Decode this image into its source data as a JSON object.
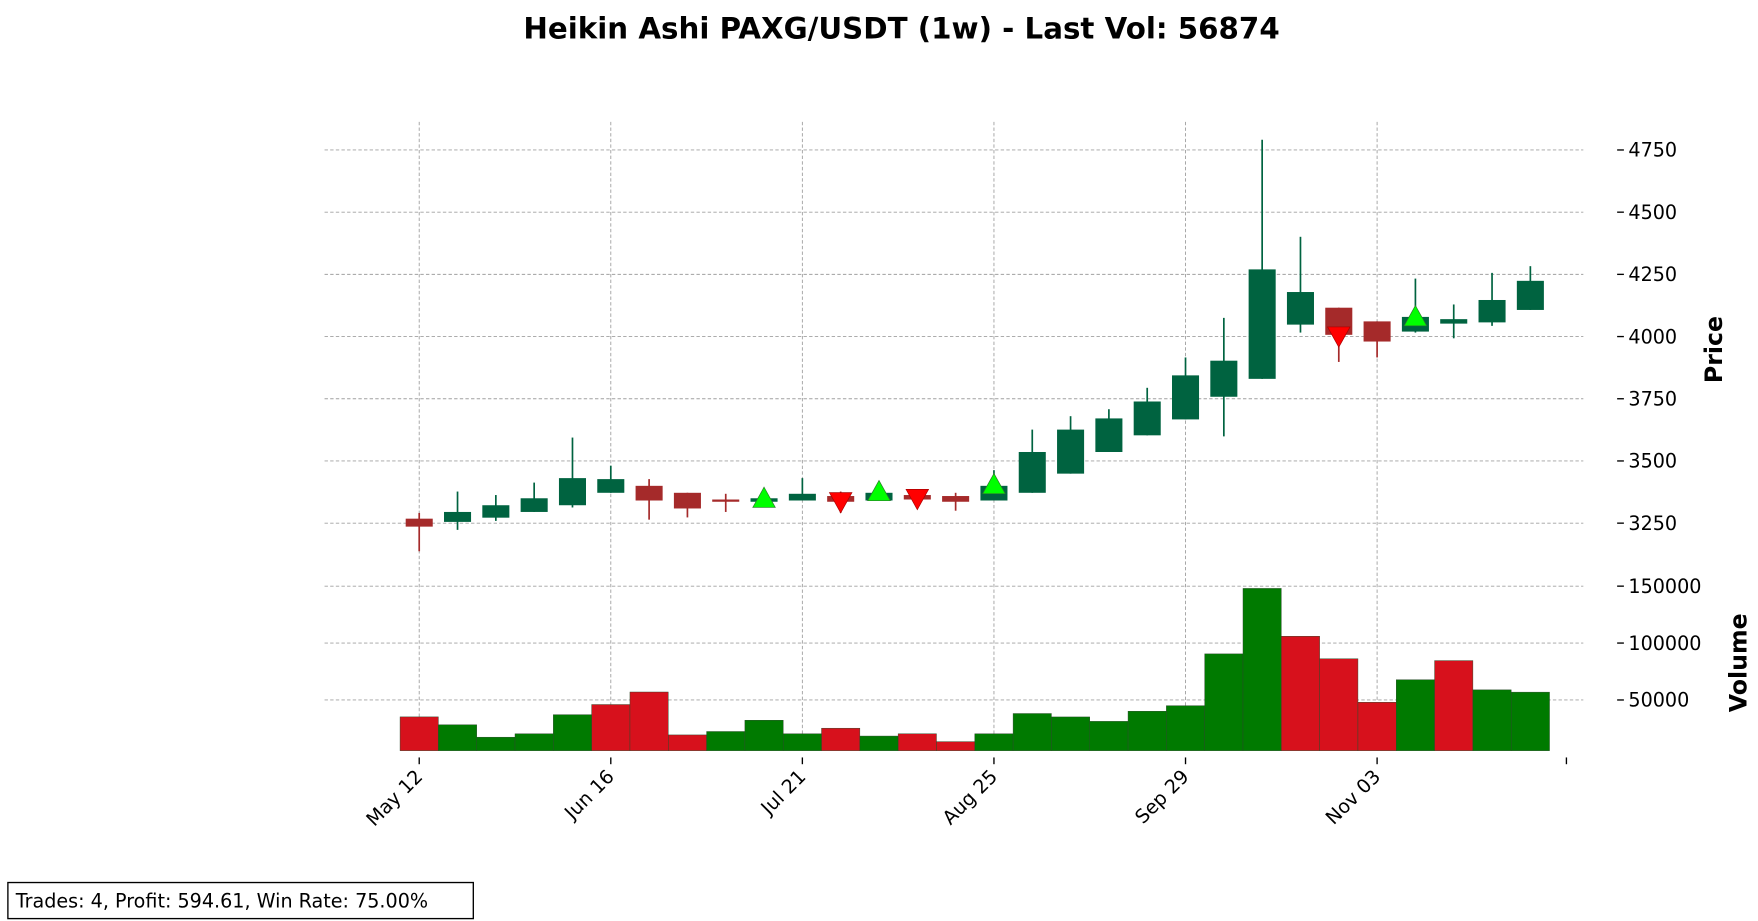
{
  "chart_data": {
    "type": "candlestick",
    "title": "Heikin Ashi PAXG/USDT (1w) - Last Vol: 56874",
    "categories": [
      "May 12",
      null,
      null,
      null,
      null,
      "Jun 16",
      null,
      null,
      null,
      null,
      "Jul 21",
      null,
      null,
      null,
      null,
      "Aug 25",
      null,
      null,
      null,
      null,
      "Sep 29",
      null,
      null,
      null,
      null,
      "Nov 03",
      null,
      null,
      null,
      null
    ],
    "open": [
      3268,
      3255,
      3272,
      3295,
      3322,
      3372,
      3400,
      3372,
      3345,
      3336,
      3341,
      3359,
      3341,
      3363,
      3359,
      3341,
      3372,
      3449,
      3536,
      3603,
      3667,
      3758,
      3830,
      4048,
      4116,
      4061,
      4020,
      4052,
      4057,
      4107
    ],
    "high": [
      3291,
      3377,
      3363,
      3413,
      3594,
      3481,
      3427,
      3372,
      3368,
      3368,
      3431,
      3377,
      3395,
      3381,
      3372,
      3463,
      3626,
      3680,
      3708,
      3794,
      3916,
      4075,
      4791,
      4401,
      4116,
      4061,
      4233,
      4129,
      4256,
      4283
    ],
    "low": [
      3137,
      3223,
      3259,
      3295,
      3313,
      3372,
      3264,
      3273,
      3295,
      3331,
      3341,
      3291,
      3341,
      3345,
      3300,
      3341,
      3372,
      3449,
      3536,
      3603,
      3667,
      3599,
      3830,
      4016,
      3898,
      3916,
      4016,
      3993,
      4043,
      4107
    ],
    "close": [
      3236,
      3295,
      3322,
      3350,
      3431,
      3427,
      3341,
      3309,
      3336,
      3350,
      3368,
      3336,
      3372,
      3345,
      3336,
      3400,
      3536,
      3626,
      3671,
      3739,
      3844,
      3903,
      4270,
      4179,
      4007,
      3980,
      4079,
      4070,
      4147,
      4224
    ],
    "up_color": "#006340",
    "down_color": "#a52a2a",
    "ylim": [
      3110,
      4863
    ],
    "yticks": [
      3250,
      3500,
      3750,
      4000,
      4250,
      4500,
      4750
    ],
    "ylabel": "Price",
    "grid": true,
    "buy_signals": {
      "color": "#00ff00",
      "values": [
        null,
        null,
        null,
        null,
        null,
        null,
        null,
        null,
        null,
        3345,
        null,
        null,
        3372,
        null,
        null,
        3400,
        null,
        null,
        null,
        null,
        null,
        null,
        null,
        null,
        null,
        null,
        4075,
        null,
        null,
        null
      ]
    },
    "sell_signals": {
      "color": "#ff0000",
      "values": [
        null,
        null,
        null,
        null,
        null,
        null,
        null,
        null,
        null,
        null,
        null,
        3341,
        null,
        3354,
        null,
        null,
        null,
        null,
        null,
        null,
        null,
        null,
        null,
        null,
        4007,
        null,
        null,
        null,
        null,
        null
      ]
    },
    "volume": {
      "ylabel": "Volume",
      "values": [
        35150,
        28200,
        17300,
        20300,
        37100,
        46000,
        57000,
        19300,
        22300,
        32200,
        20300,
        25200,
        18300,
        20300,
        13400,
        20300,
        38100,
        35100,
        31200,
        40100,
        45000,
        90500,
        148000,
        106000,
        86200,
        48000,
        67800,
        84600,
        58900,
        56874
      ],
      "colors": [
        "#d7111c",
        "#007a00",
        "#007a00",
        "#007a00",
        "#007a00",
        "#d7111c",
        "#d7111c",
        "#d7111c",
        "#007a00",
        "#007a00",
        "#007a00",
        "#d7111c",
        "#007a00",
        "#d7111c",
        "#d7111c",
        "#007a00",
        "#007a00",
        "#007a00",
        "#007a00",
        "#007a00",
        "#007a00",
        "#007a00",
        "#007a00",
        "#d7111c",
        "#d7111c",
        "#d7111c",
        "#007a00",
        "#d7111c",
        "#007a00",
        "#007a00"
      ],
      "ylim": [
        5450,
        174750
      ],
      "yticks": [
        50000,
        100000,
        150000
      ]
    },
    "annotation": "Trades: 4, Profit: 594.61, Win Rate: 75.00%"
  }
}
